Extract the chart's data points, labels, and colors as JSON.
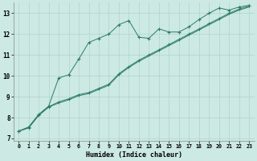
{
  "xlabel": "Humidex (Indice chaleur)",
  "bg_color": "#cce9e4",
  "line_color": "#2d7a6a",
  "grid_color": "#b0d4cc",
  "xlim": [
    -0.5,
    23.5
  ],
  "ylim": [
    6.9,
    13.5
  ],
  "xticks": [
    0,
    1,
    2,
    3,
    4,
    5,
    6,
    7,
    8,
    9,
    10,
    11,
    12,
    13,
    14,
    15,
    16,
    17,
    18,
    19,
    20,
    21,
    22,
    23
  ],
  "yticks": [
    7,
    8,
    9,
    10,
    11,
    12,
    13
  ],
  "series1_x": [
    0,
    1,
    2,
    3,
    4,
    5,
    6,
    7,
    8,
    9,
    10,
    11,
    12,
    13,
    14,
    15,
    16,
    17,
    18,
    19,
    20,
    21,
    22,
    23
  ],
  "series1_y": [
    7.35,
    7.55,
    8.15,
    8.55,
    9.9,
    10.05,
    10.8,
    11.6,
    11.8,
    12.0,
    12.45,
    12.65,
    11.85,
    11.8,
    12.25,
    12.1,
    12.1,
    12.35,
    12.7,
    13.0,
    13.25,
    13.15,
    13.3,
    13.38
  ],
  "series2_x": [
    0,
    1,
    2,
    3,
    4,
    5,
    6,
    7,
    8,
    9,
    10,
    11,
    12,
    13,
    14,
    15,
    16,
    17,
    18,
    19,
    20,
    21,
    22,
    23
  ],
  "series2_y": [
    7.35,
    7.5,
    8.1,
    8.5,
    8.7,
    8.85,
    9.05,
    9.15,
    9.35,
    9.55,
    10.05,
    10.4,
    10.7,
    10.95,
    11.2,
    11.45,
    11.7,
    11.95,
    12.2,
    12.45,
    12.7,
    12.95,
    13.15,
    13.3
  ],
  "series3_x": [
    0,
    1,
    2,
    3,
    4,
    5,
    6,
    7,
    8,
    9,
    10,
    11,
    12,
    13,
    14,
    15,
    16,
    17,
    18,
    19,
    20,
    21,
    22,
    23
  ],
  "series3_y": [
    7.35,
    7.52,
    8.12,
    8.52,
    8.75,
    8.9,
    9.1,
    9.2,
    9.4,
    9.6,
    10.1,
    10.45,
    10.75,
    11.0,
    11.25,
    11.5,
    11.75,
    12.0,
    12.25,
    12.5,
    12.75,
    13.0,
    13.2,
    13.35
  ]
}
